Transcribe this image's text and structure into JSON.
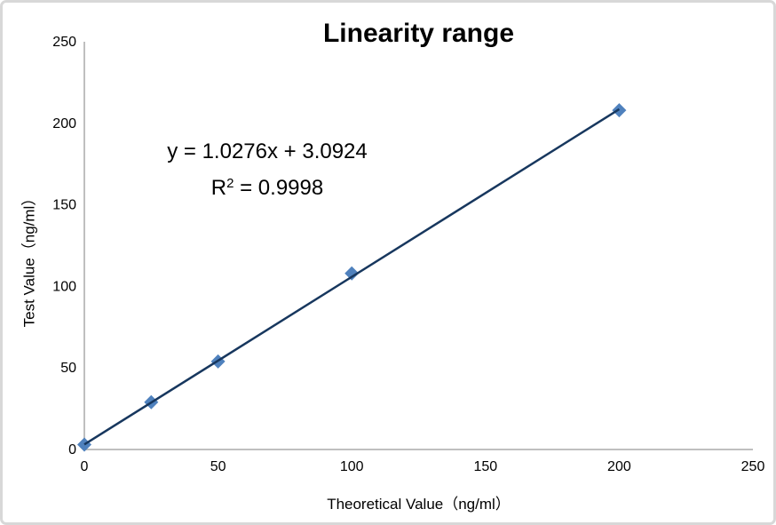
{
  "chart_data": {
    "type": "scatter",
    "title": "Linearity range",
    "xlabel": "Theoretical Value（ng/ml）",
    "ylabel": "Test Value（ng/ml）",
    "x": [
      0,
      25,
      50,
      100,
      200
    ],
    "y": [
      3,
      29,
      54,
      108,
      208
    ],
    "xlim": [
      0,
      250
    ],
    "ylim": [
      0,
      250
    ],
    "x_ticks": [
      0,
      50,
      100,
      150,
      200,
      250
    ],
    "y_ticks": [
      0,
      50,
      100,
      150,
      200,
      250
    ],
    "grid": false,
    "legend_position": "none",
    "trendline": {
      "slope": 1.0276,
      "intercept": 3.0924,
      "x_start": 0,
      "x_end": 200,
      "equation": "y = 1.0276x + 3.0924",
      "r2_base": "R",
      "r2_exponent": "2",
      "r2_value": " = 0.9998"
    },
    "colors": {
      "marker": "#4F81BD",
      "trendline": "#17375E",
      "axis": "#BFBFBF",
      "text": "#000000"
    }
  }
}
